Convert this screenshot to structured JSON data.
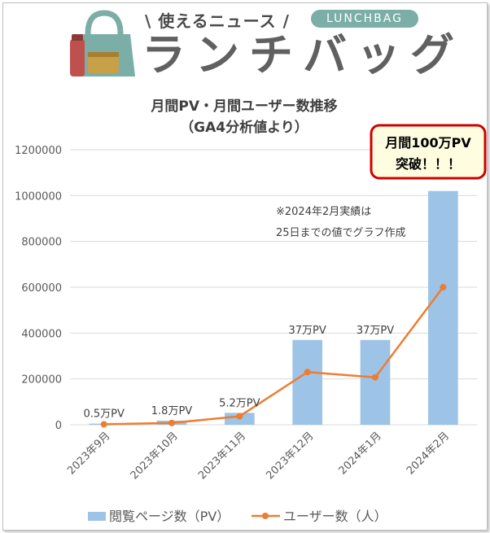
{
  "logo": {
    "tagline": "\\ 使えるニュース /",
    "badge": "LUNCHBAG",
    "wordmark": "ランチバッグ",
    "colors": {
      "bag": "#7aaea6",
      "bottle": "#c0504d",
      "box": "#c8a048"
    }
  },
  "callout": {
    "line1": "月間100万PV",
    "line2": "突破！！！",
    "border_color": "#d00000",
    "fill_color": "#fffde0"
  },
  "chart_data": {
    "type": "bar",
    "title": "月間PV・月間ユーザー数推移",
    "subtitle": "（GA4分析値より）",
    "categories": [
      "2023年9月",
      "2023年10月",
      "2023年11月",
      "2023年12月",
      "2024年1月",
      "2024年2月"
    ],
    "series": [
      {
        "name": "閲覧ページ数（PV）",
        "type": "bar",
        "color": "#9dc3e6",
        "values": [
          5000,
          18000,
          52000,
          370000,
          370000,
          1020000
        ],
        "data_labels": [
          "0.5万PV",
          "1.8万PV",
          "5.2万PV",
          "37万PV",
          "37万PV",
          ""
        ]
      },
      {
        "name": "ユーザー数（人）",
        "type": "line",
        "color": "#ed7d31",
        "values": [
          2000,
          8000,
          37000,
          230000,
          207000,
          600000
        ]
      }
    ],
    "ylim": [
      0,
      1200000
    ],
    "yticks": [
      0,
      200000,
      400000,
      600000,
      800000,
      1000000,
      1200000
    ],
    "xlabel": "",
    "ylabel": "",
    "grid": true,
    "legend": "bottom",
    "annotation_lines": [
      "※2024年2月実績は",
      "25日までの値でグラフ作成"
    ]
  }
}
